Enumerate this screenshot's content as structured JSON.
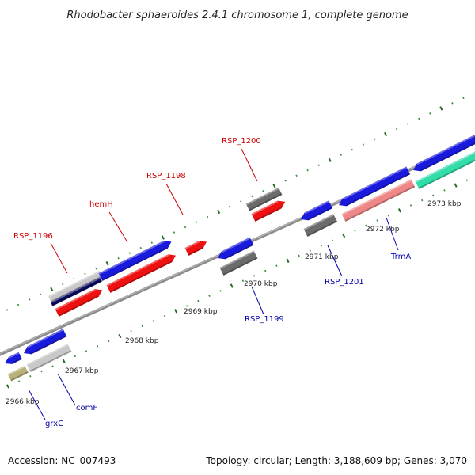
{
  "title": "Rhodobacter sphaeroides 2.4.1 chromosome 1, complete genome",
  "footer": {
    "accession": "Accession: NC_007493",
    "summary": "Topology: circular; Length: 3,188,609 bp; Genes: 3,070"
  },
  "colors": {
    "backbone": "#8c8c8c",
    "tick_minor": "#2e8b2e",
    "tick_major": "#1f6e1f",
    "label_red": "#cc0000",
    "label_blue": "#0000aa",
    "cds_blue": "#1a1adc",
    "cds_red": "#ee1111",
    "cds_dark": "#6b6b6b",
    "cds_light": "#c8c8c8",
    "cds_navy": "#0a0a60",
    "cds_olive": "#b8b27a",
    "rna_pink": "#ee8888",
    "rna_green": "#33ddaa"
  },
  "axis_ticks": [
    {
      "label": "2966 kbp"
    },
    {
      "label": "2967 kbp"
    },
    {
      "label": "2968 kbp"
    },
    {
      "label": "2969 kbp"
    },
    {
      "label": "2970 kbp"
    },
    {
      "label": "2971 kbp"
    },
    {
      "label": "2972 kbp"
    },
    {
      "label": "2973 kbp"
    }
  ],
  "gene_labels": [
    {
      "text": "RSP_1196",
      "color": "label_red"
    },
    {
      "text": "hemH",
      "color": "label_red"
    },
    {
      "text": "RSP_1198",
      "color": "label_red"
    },
    {
      "text": "RSP_1200",
      "color": "label_red"
    },
    {
      "text": "grxC",
      "color": "label_blue"
    },
    {
      "text": "comF",
      "color": "label_blue"
    },
    {
      "text": "RSP_1199",
      "color": "label_blue"
    },
    {
      "text": "RSP_1201",
      "color": "label_blue"
    },
    {
      "text": "TrmA",
      "color": "label_blue"
    }
  ]
}
